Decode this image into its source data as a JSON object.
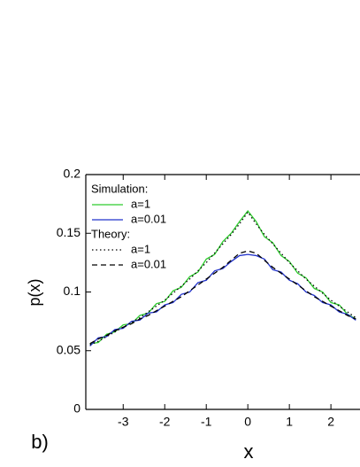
{
  "chart_data": {
    "type": "line",
    "panel_label": "b)",
    "x_label": "x",
    "y_label": "p(x)",
    "x": [
      -3.8,
      -3.6,
      -3.4,
      -3.2,
      -3.0,
      -2.8,
      -2.6,
      -2.4,
      -2.2,
      -2.0,
      -1.8,
      -1.6,
      -1.4,
      -1.2,
      -1.0,
      -0.8,
      -0.6,
      -0.4,
      -0.2,
      0,
      0.2,
      0.4,
      0.6,
      0.8,
      1.0,
      1.2,
      1.4,
      1.6,
      1.8,
      2.0,
      2.2,
      2.4,
      2.6
    ],
    "legend_headings": [
      "Simulation:",
      "Theory:"
    ],
    "series": [
      {
        "name": "a=1",
        "group": 0,
        "color": "#2ecc2e",
        "dash": "solid",
        "values": [
          0.056,
          0.057,
          0.064,
          0.066,
          0.072,
          0.073,
          0.08,
          0.082,
          0.09,
          0.092,
          0.101,
          0.104,
          0.113,
          0.117,
          0.128,
          0.132,
          0.143,
          0.15,
          0.16,
          0.169,
          0.16,
          0.147,
          0.142,
          0.131,
          0.126,
          0.116,
          0.112,
          0.103,
          0.1,
          0.091,
          0.089,
          0.081,
          0.077
        ]
      },
      {
        "name": "a=0.01",
        "group": 0,
        "color": "#2233cc",
        "dash": "solid",
        "values": [
          0.054,
          0.061,
          0.062,
          0.068,
          0.069,
          0.075,
          0.076,
          0.082,
          0.083,
          0.089,
          0.091,
          0.098,
          0.1,
          0.108,
          0.11,
          0.118,
          0.12,
          0.126,
          0.131,
          0.132,
          0.131,
          0.128,
          0.119,
          0.117,
          0.11,
          0.107,
          0.1,
          0.097,
          0.091,
          0.089,
          0.083,
          0.081,
          0.076
        ]
      },
      {
        "name": "a=1",
        "group": 1,
        "color": "#000000",
        "dash": "dotted",
        "values": [
          0.055,
          0.058,
          0.062,
          0.066,
          0.07,
          0.074,
          0.078,
          0.083,
          0.088,
          0.093,
          0.099,
          0.105,
          0.111,
          0.118,
          0.125,
          0.133,
          0.141,
          0.149,
          0.158,
          0.168,
          0.158,
          0.149,
          0.141,
          0.133,
          0.125,
          0.118,
          0.111,
          0.105,
          0.099,
          0.093,
          0.088,
          0.083,
          0.078
        ]
      },
      {
        "name": "a=0.01",
        "group": 1,
        "color": "#000000",
        "dash": "dashed",
        "values": [
          0.056,
          0.06,
          0.063,
          0.067,
          0.07,
          0.073,
          0.077,
          0.08,
          0.084,
          0.088,
          0.092,
          0.096,
          0.101,
          0.106,
          0.111,
          0.116,
          0.121,
          0.127,
          0.133,
          0.135,
          0.133,
          0.127,
          0.121,
          0.116,
          0.111,
          0.106,
          0.101,
          0.096,
          0.092,
          0.088,
          0.084,
          0.08,
          0.077
        ]
      }
    ],
    "xlim": [
      -3.9,
      2.7
    ],
    "xticks": [
      -3,
      -2,
      -1,
      0,
      1,
      2
    ],
    "ylim": [
      0,
      0.2
    ],
    "yticks": [
      0,
      0.05,
      0.1,
      0.15,
      0.2
    ]
  }
}
